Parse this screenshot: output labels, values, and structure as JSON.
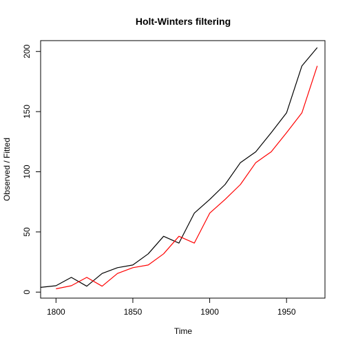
{
  "chart_data": {
    "type": "line",
    "title": "Holt-Winters filtering",
    "xlabel": "Time",
    "ylabel": "Observed / Fitted",
    "xlim": [
      1790,
      1975
    ],
    "ylim": [
      -5,
      209
    ],
    "x_ticks": [
      1800,
      1850,
      1900,
      1950
    ],
    "y_ticks": [
      0,
      50,
      100,
      150,
      200
    ],
    "grid": false,
    "legend": "none",
    "series": [
      {
        "role": "observed",
        "color": "#000000",
        "x": [
          1790,
          1800,
          1810,
          1820,
          1830,
          1840,
          1850,
          1860,
          1870,
          1880,
          1890,
          1900,
          1910,
          1920,
          1930,
          1940,
          1950,
          1960,
          1970
        ],
        "values": [
          3.9,
          5.3,
          12.2,
          4.9,
          15.5,
          20.3,
          22.5,
          31.8,
          46.4,
          40.7,
          65.6,
          77.0,
          89.4,
          107.6,
          116.6,
          132.5,
          149.0,
          188.0,
          203.2
        ]
      },
      {
        "role": "fitted",
        "color": "#ff0000",
        "x": [
          1800,
          1810,
          1820,
          1830,
          1840,
          1850,
          1860,
          1870,
          1880,
          1890,
          1900,
          1910,
          1920,
          1930,
          1940,
          1950,
          1960,
          1970
        ],
        "values": [
          2.7,
          5.3,
          12.2,
          4.9,
          15.5,
          20.3,
          22.5,
          31.8,
          46.4,
          40.7,
          65.6,
          77.0,
          89.4,
          107.6,
          116.6,
          132.5,
          149.0,
          188.0
        ]
      }
    ]
  }
}
